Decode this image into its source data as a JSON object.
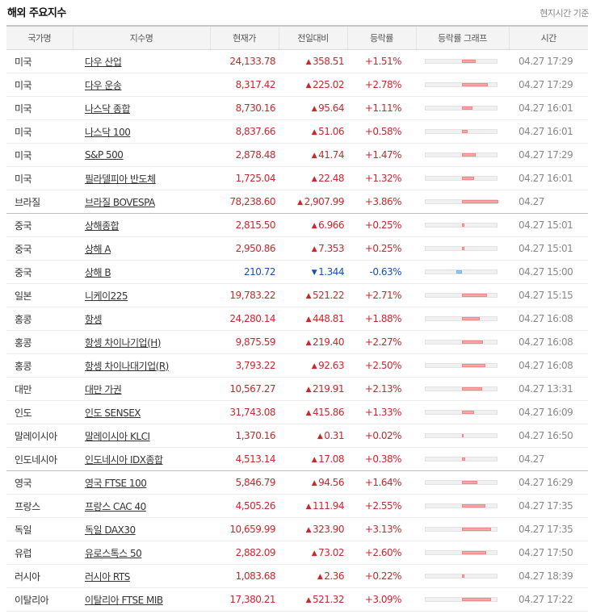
{
  "header": {
    "title": "해외 주요지수",
    "note": "현지시간 기준"
  },
  "columns": [
    "국가명",
    "지수명",
    "현재가",
    "전일대비",
    "등락률",
    "등락률 그래프",
    "시간"
  ],
  "colors": {
    "up": "#c8282d",
    "down": "#1a4fae",
    "bar_up": "#f7a6a6",
    "bar_down": "#8fcdee"
  },
  "rows": [
    {
      "country": "미국",
      "name": "다우 산업",
      "price": "24,133.78",
      "change": "358.51",
      "rate": "+1.51%",
      "rate_value": 1.51,
      "time": "04.27 17:29",
      "dir": "up",
      "group_end": false
    },
    {
      "country": "미국",
      "name": "다우 운송",
      "price": "8,317.42",
      "change": "225.02",
      "rate": "+2.78%",
      "rate_value": 2.78,
      "time": "04.27 17:29",
      "dir": "up",
      "group_end": false
    },
    {
      "country": "미국",
      "name": "나스닥 종합",
      "price": "8,730.16",
      "change": "95.64",
      "rate": "+1.11%",
      "rate_value": 1.11,
      "time": "04.27 16:01",
      "dir": "up",
      "group_end": false
    },
    {
      "country": "미국",
      "name": "나스닥 100",
      "price": "8,837.66",
      "change": "51.06",
      "rate": "+0.58%",
      "rate_value": 0.58,
      "time": "04.27 16:01",
      "dir": "up",
      "group_end": false
    },
    {
      "country": "미국",
      "name": "S&P 500",
      "price": "2,878.48",
      "change": "41.74",
      "rate": "+1.47%",
      "rate_value": 1.47,
      "time": "04.27 17:29",
      "dir": "up",
      "group_end": false
    },
    {
      "country": "미국",
      "name": "필라델피아 반도체",
      "price": "1,725.04",
      "change": "22.48",
      "rate": "+1.32%",
      "rate_value": 1.32,
      "time": "04.27 16:01",
      "dir": "up",
      "group_end": false
    },
    {
      "country": "브라질",
      "name": "브라질 BOVESPA",
      "price": "78,238.60",
      "change": "2,907.99",
      "rate": "+3.86%",
      "rate_value": 3.86,
      "time": "04.27",
      "dir": "up",
      "group_end": true
    },
    {
      "country": "중국",
      "name": "상해종합",
      "price": "2,815.50",
      "change": "6.966",
      "rate": "+0.25%",
      "rate_value": 0.25,
      "time": "04.27 15:01",
      "dir": "up",
      "group_end": false
    },
    {
      "country": "중국",
      "name": "상해 A",
      "price": "2,950.86",
      "change": "7.353",
      "rate": "+0.25%",
      "rate_value": 0.25,
      "time": "04.27 15:01",
      "dir": "up",
      "group_end": false
    },
    {
      "country": "중국",
      "name": "상해 B",
      "price": "210.72",
      "change": "1.344",
      "rate": "-0.63%",
      "rate_value": -0.63,
      "time": "04.27 15:00",
      "dir": "down",
      "group_end": false
    },
    {
      "country": "일본",
      "name": "니케이225",
      "price": "19,783.22",
      "change": "521.22",
      "rate": "+2.71%",
      "rate_value": 2.71,
      "time": "04.27 15:15",
      "dir": "up",
      "group_end": false
    },
    {
      "country": "홍콩",
      "name": "항셍",
      "price": "24,280.14",
      "change": "448.81",
      "rate": "+1.88%",
      "rate_value": 1.88,
      "time": "04.27 16:08",
      "dir": "up",
      "group_end": false
    },
    {
      "country": "홍콩",
      "name": "항셍 차이나기업(H)",
      "price": "9,875.59",
      "change": "219.40",
      "rate": "+2.27%",
      "rate_value": 2.27,
      "time": "04.27 16:08",
      "dir": "up",
      "group_end": false
    },
    {
      "country": "홍콩",
      "name": "항셍 차이나대기업(R)",
      "price": "3,793.22",
      "change": "92.63",
      "rate": "+2.50%",
      "rate_value": 2.5,
      "time": "04.27 16:08",
      "dir": "up",
      "group_end": false
    },
    {
      "country": "대만",
      "name": "대만 가권",
      "price": "10,567.27",
      "change": "219.91",
      "rate": "+2.13%",
      "rate_value": 2.13,
      "time": "04.27 13:31",
      "dir": "up",
      "group_end": false
    },
    {
      "country": "인도",
      "name": "인도 SENSEX",
      "price": "31,743.08",
      "change": "415.86",
      "rate": "+1.33%",
      "rate_value": 1.33,
      "time": "04.27 16:09",
      "dir": "up",
      "group_end": false
    },
    {
      "country": "말레이시아",
      "name": "말레이시아 KLCI",
      "price": "1,370.16",
      "change": "0.31",
      "rate": "+0.02%",
      "rate_value": 0.02,
      "time": "04.27 16:50",
      "dir": "up",
      "group_end": false
    },
    {
      "country": "인도네시아",
      "name": "인도네시아 IDX종합",
      "price": "4,513.14",
      "change": "17.08",
      "rate": "+0.38%",
      "rate_value": 0.38,
      "time": "04.27",
      "dir": "up",
      "group_end": true
    },
    {
      "country": "영국",
      "name": "영국 FTSE 100",
      "price": "5,846.79",
      "change": "94.56",
      "rate": "+1.64%",
      "rate_value": 1.64,
      "time": "04.27 16:29",
      "dir": "up",
      "group_end": false
    },
    {
      "country": "프랑스",
      "name": "프랑스 CAC 40",
      "price": "4,505.26",
      "change": "111.94",
      "rate": "+2.55%",
      "rate_value": 2.55,
      "time": "04.27 17:35",
      "dir": "up",
      "group_end": false
    },
    {
      "country": "독일",
      "name": "독일 DAX30",
      "price": "10,659.99",
      "change": "323.90",
      "rate": "+3.13%",
      "rate_value": 3.13,
      "time": "04.27 17:35",
      "dir": "up",
      "group_end": false
    },
    {
      "country": "유럽",
      "name": "유로스톡스 50",
      "price": "2,882.09",
      "change": "73.02",
      "rate": "+2.60%",
      "rate_value": 2.6,
      "time": "04.27 17:50",
      "dir": "up",
      "group_end": false
    },
    {
      "country": "러시아",
      "name": "러시아 RTS",
      "price": "1,083.68",
      "change": "2.36",
      "rate": "+0.22%",
      "rate_value": 0.22,
      "time": "04.27 18:39",
      "dir": "up",
      "group_end": false
    },
    {
      "country": "이탈리아",
      "name": "이탈리아 FTSE MIB",
      "price": "17,380.21",
      "change": "521.32",
      "rate": "+3.09%",
      "rate_value": 3.09,
      "time": "04.27 17:22",
      "dir": "up",
      "group_end": false
    }
  ]
}
